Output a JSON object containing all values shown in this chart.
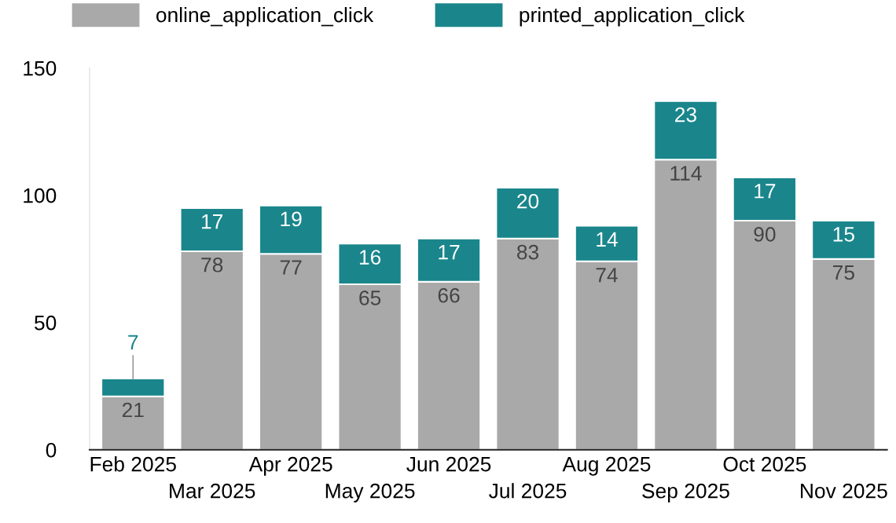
{
  "chart_data": {
    "type": "bar",
    "stacked": true,
    "categories": [
      "Feb 2025",
      "Mar 2025",
      "Apr 2025",
      "May 2025",
      "Jun 2025",
      "Jul 2025",
      "Aug 2025",
      "Sep 2025",
      "Oct 2025",
      "Nov 2025"
    ],
    "series": [
      {
        "name": "online_application_click",
        "color": "#a9a9a9",
        "values": [
          21,
          78,
          77,
          65,
          66,
          83,
          74,
          114,
          90,
          75
        ]
      },
      {
        "name": "printed_application_click",
        "color": "#1a868c",
        "values": [
          7,
          17,
          19,
          16,
          17,
          20,
          14,
          23,
          17,
          15
        ]
      }
    ],
    "ylim": [
      0,
      150
    ],
    "yticks": [
      0,
      50,
      100,
      150
    ],
    "grid": false,
    "legend": "top",
    "data_labels": true
  }
}
